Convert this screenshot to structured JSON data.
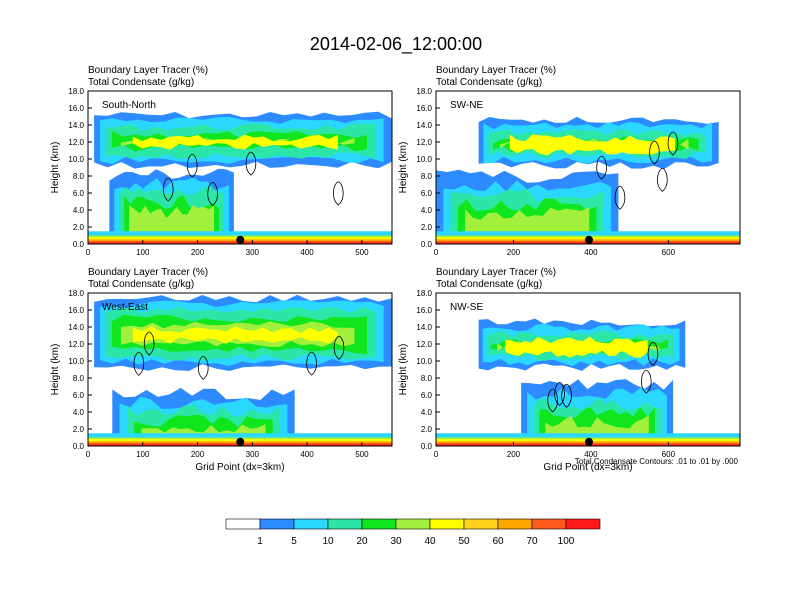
{
  "chart_data": {
    "type": "contour",
    "title": "2014-02-06_12:00:00",
    "subtitle_left_1": "Boundary Layer Tracer   (%)",
    "subtitle_left_2": "Total Condensate   (g/kg)",
    "ylabel": "Height (km)",
    "xlabel": "Grid Point (dx=3km)",
    "ylim": [
      0,
      18
    ],
    "yticks": [
      "0.0",
      "2.0",
      "4.0",
      "6.0",
      "8.0",
      "10.0",
      "12.0",
      "14.0",
      "16.0",
      "18.0"
    ],
    "contour_note": "Total Condensate Contours: .01 to .01 by .000",
    "panels": [
      {
        "name": "South-North",
        "xlim": [
          0,
          555
        ],
        "xticks": [
          0,
          100,
          200,
          300,
          400,
          500
        ],
        "marker_x": 278
      },
      {
        "name": "SW-NE",
        "xlim": [
          0,
          785
        ],
        "xticks": [
          0,
          200,
          400,
          600
        ],
        "marker_x": 395
      },
      {
        "name": "West-East",
        "xlim": [
          0,
          555
        ],
        "xticks": [
          0,
          100,
          200,
          300,
          400,
          500
        ],
        "marker_x": 278
      },
      {
        "name": "NW-SE",
        "xlim": [
          0,
          785
        ],
        "xticks": [
          0,
          200,
          400,
          600
        ],
        "marker_x": 395
      }
    ],
    "colorbar": {
      "colors": [
        "#ffffff",
        "#2e8bff",
        "#2ad7ff",
        "#2be6a6",
        "#10e61e",
        "#a3f03c",
        "#ffff00",
        "#ffd21c",
        "#ffa500",
        "#ff5a1e",
        "#ff1a1a"
      ],
      "labels": [
        "1",
        "5",
        "10",
        "20",
        "30",
        "40",
        "50",
        "60",
        "70",
        "100"
      ]
    }
  }
}
